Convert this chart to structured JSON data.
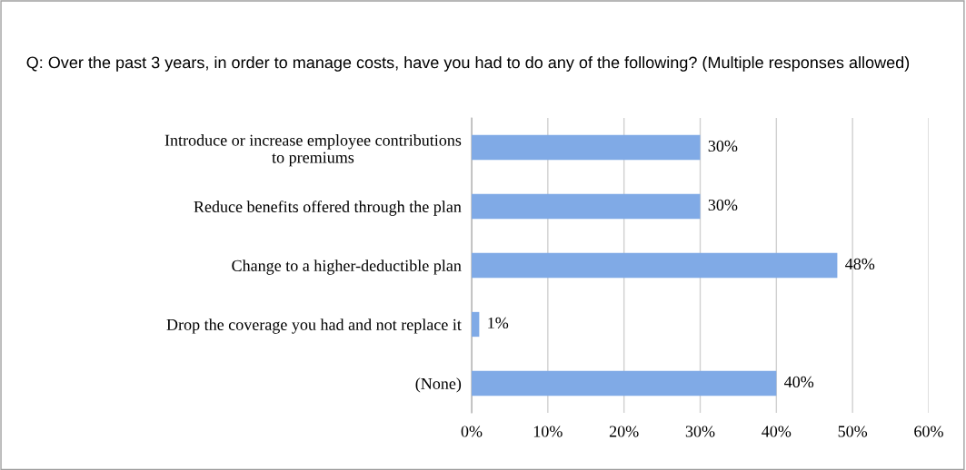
{
  "chart_data": {
    "type": "bar",
    "orientation": "horizontal",
    "title": "Q: Over the past 3 years, in order to manage costs, have you had to do any of the following? (Multiple responses allowed)",
    "categories": [
      "Introduce or increase employee contributions to premiums",
      "Reduce benefits offered through the plan",
      "Change to a higher-deductible plan",
      "Drop the coverage you had and not replace it",
      "(None)"
    ],
    "values": [
      30,
      30,
      48,
      1,
      40
    ],
    "value_labels": [
      "30%",
      "30%",
      "48%",
      "1%",
      "40%"
    ],
    "color": "#80aae6",
    "xlim": [
      0,
      60
    ],
    "xticks": [
      {
        "value": 0,
        "label": "0%"
      },
      {
        "value": 10,
        "label": "10%"
      },
      {
        "value": 20,
        "label": "20%"
      },
      {
        "value": 30,
        "label": "30%"
      },
      {
        "value": 40,
        "label": "40%"
      },
      {
        "value": 50,
        "label": "50%"
      },
      {
        "value": 60,
        "label": "60%"
      }
    ],
    "grid": "x"
  }
}
